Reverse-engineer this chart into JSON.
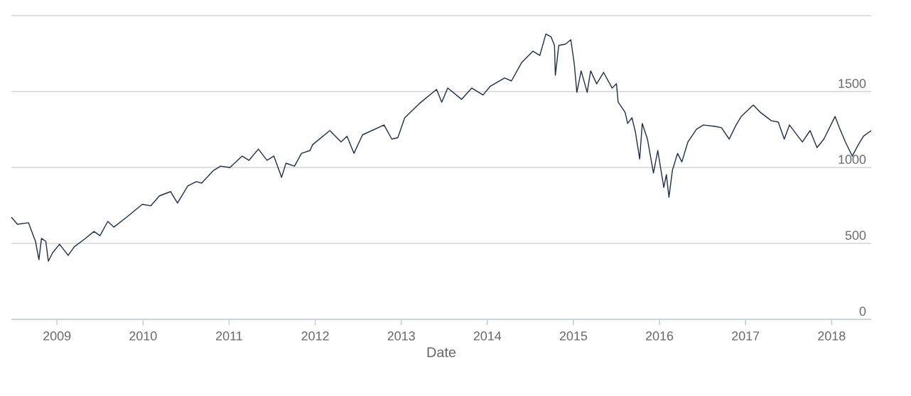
{
  "chart_data": {
    "type": "line",
    "xlabel": "Date",
    "xlim": [
      2008.47,
      2018.46
    ],
    "xticks": [
      2009,
      2010,
      2011,
      2012,
      2013,
      2014,
      2015,
      2016,
      2017,
      2018
    ],
    "ylim": [
      0,
      2000
    ],
    "yticks": [
      0,
      500,
      1000,
      1500,
      {
        "value": 2000,
        "label": null
      }
    ],
    "grid": "y",
    "marker": "none",
    "line_style": "solid",
    "series": [
      {
        "color": "#1f2d4a",
        "x": [
          2008.47,
          2008.54,
          2008.67,
          2008.7,
          2008.75,
          2008.79,
          2008.82,
          2008.87,
          2008.9,
          2008.95,
          2009.03,
          2009.13,
          2009.2,
          2009.33,
          2009.43,
          2009.5,
          2009.59,
          2009.66,
          2009.83,
          2009.99,
          2010.09,
          2010.19,
          2010.32,
          2010.4,
          2010.52,
          2010.62,
          2010.68,
          2010.82,
          2010.9,
          2011.01,
          2011.15,
          2011.23,
          2011.34,
          2011.44,
          2011.52,
          2011.61,
          2011.66,
          2011.76,
          2011.84,
          2011.94,
          2011.97,
          2012.17,
          2012.3,
          2012.37,
          2012.45,
          2012.55,
          2012.8,
          2012.89,
          2012.96,
          2013.04,
          2013.21,
          2013.41,
          2013.47,
          2013.54,
          2013.7,
          2013.82,
          2013.95,
          2014.03,
          2014.2,
          2014.28,
          2014.4,
          2014.53,
          2014.61,
          2014.68,
          2014.74,
          2014.78,
          2014.79,
          2014.83,
          2014.91,
          2014.97,
          2015.01,
          2015.04,
          2015.09,
          2015.16,
          2015.2,
          2015.27,
          2015.35,
          2015.45,
          2015.5,
          2015.52,
          2015.6,
          2015.63,
          2015.68,
          2015.72,
          2015.77,
          2015.8,
          2015.86,
          2015.93,
          2015.98,
          2016.05,
          2016.08,
          2016.11,
          2016.15,
          2016.21,
          2016.26,
          2016.33,
          2016.43,
          2016.51,
          2016.64,
          2016.72,
          2016.81,
          2016.89,
          2016.95,
          2017.09,
          2017.17,
          2017.3,
          2017.38,
          2017.45,
          2017.51,
          2017.66,
          2017.75,
          2017.83,
          2017.91,
          2018.04,
          2018.09,
          2018.16,
          2018.24,
          2018.31,
          2018.37,
          2018.46
        ],
        "values": [
          673,
          626,
          636,
          589,
          514,
          393,
          533,
          514,
          383,
          439,
          495,
          421,
          477,
          533,
          579,
          551,
          645,
          607,
          682,
          757,
          748,
          813,
          841,
          766,
          879,
          907,
          897,
          981,
          1009,
          1000,
          1075,
          1047,
          1121,
          1047,
          1075,
          935,
          1028,
          1009,
          1093,
          1112,
          1150,
          1243,
          1168,
          1206,
          1093,
          1215,
          1280,
          1187,
          1196,
          1327,
          1421,
          1514,
          1430,
          1523,
          1449,
          1523,
          1477,
          1533,
          1589,
          1570,
          1692,
          1766,
          1738,
          1879,
          1860,
          1804,
          1607,
          1804,
          1813,
          1841,
          1682,
          1495,
          1636,
          1495,
          1636,
          1551,
          1626,
          1523,
          1551,
          1430,
          1364,
          1290,
          1327,
          1234,
          1056,
          1290,
          1187,
          963,
          1112,
          869,
          953,
          804,
          981,
          1093,
          1037,
          1168,
          1252,
          1280,
          1271,
          1262,
          1187,
          1280,
          1336,
          1411,
          1364,
          1308,
          1299,
          1187,
          1280,
          1168,
          1243,
          1131,
          1187,
          1336,
          1262,
          1168,
          1075,
          1150,
          1206,
          1243
        ]
      }
    ]
  }
}
